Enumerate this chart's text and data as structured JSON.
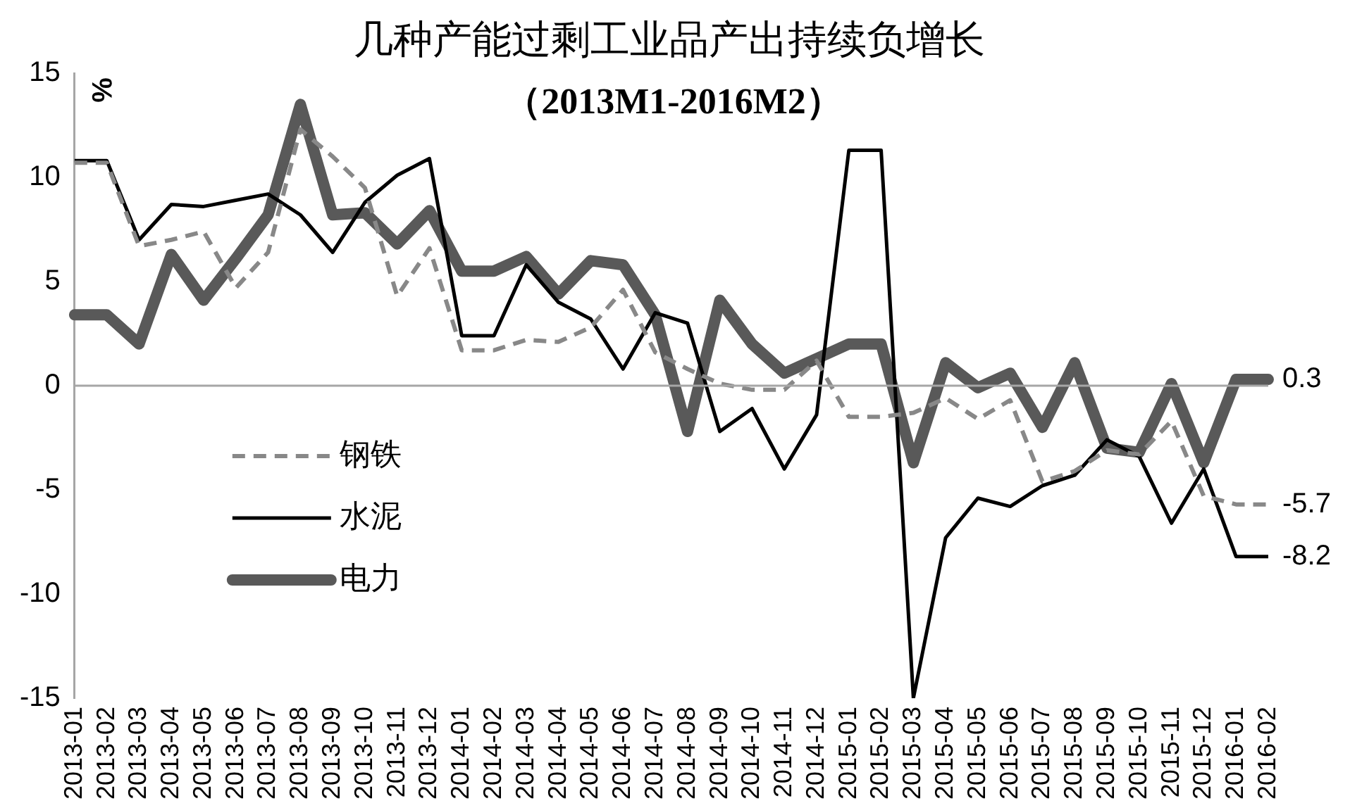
{
  "chart_data": {
    "type": "line",
    "title": "几种产能过剩工业品产出持续负增长",
    "subtitle": "（2013M1-2016M2）",
    "ylabel": "%",
    "categories": [
      "2013-01",
      "2013-02",
      "2013-03",
      "2013-04",
      "2013-05",
      "2013-06",
      "2013-07",
      "2013-08",
      "2013-09",
      "2013-10",
      "2013-11",
      "2013-12",
      "2014-01",
      "2014-02",
      "2014-03",
      "2014-04",
      "2014-05",
      "2014-06",
      "2014-07",
      "2014-08",
      "2014-09",
      "2014-10",
      "2014-11",
      "2014-12",
      "2015-01",
      "2015-02",
      "2015-03",
      "2015-04",
      "2015-05",
      "2015-06",
      "2015-07",
      "2015-08",
      "2015-09",
      "2015-10",
      "2015-11",
      "2015-12",
      "2016-01",
      "2016-02"
    ],
    "series": [
      {
        "name": "钢铁",
        "color": "#888888",
        "line_style": "dashed",
        "values": [
          10.7,
          10.7,
          6.7,
          7.0,
          7.4,
          4.7,
          6.4,
          12.3,
          11.0,
          9.5,
          4.3,
          6.6,
          1.7,
          1.7,
          2.2,
          2.1,
          2.8,
          4.6,
          1.6,
          0.8,
          0.1,
          -0.2,
          -0.2,
          1.2,
          -1.5,
          -1.5,
          -1.3,
          -0.6,
          -1.6,
          -0.7,
          -4.6,
          -4.1,
          -3.1,
          -3.3,
          -1.7,
          -5.3,
          -5.7,
          -5.7
        ]
      },
      {
        "name": "水泥",
        "color": "#000000",
        "line_style": "solid",
        "values": [
          10.8,
          10.8,
          7.0,
          8.7,
          8.6,
          8.9,
          9.2,
          8.2,
          6.4,
          8.8,
          10.1,
          10.9,
          2.4,
          2.4,
          5.8,
          4.0,
          3.2,
          0.8,
          3.5,
          3.0,
          -2.2,
          -1.1,
          -4.0,
          -1.4,
          11.3,
          11.3,
          -15,
          -7.3,
          -5.4,
          -5.8,
          -4.8,
          -4.3,
          -2.6,
          -3.4,
          -6.6,
          -4.0,
          -8.2,
          -8.2
        ]
      },
      {
        "name": "电力",
        "color": "#595959",
        "line_style": "solid",
        "values": [
          3.4,
          3.4,
          2.0,
          6.3,
          4.1,
          6.1,
          8.2,
          13.5,
          8.2,
          8.3,
          6.8,
          8.4,
          5.5,
          5.5,
          6.2,
          4.4,
          6.0,
          5.8,
          3.4,
          -2.2,
          4.1,
          2.0,
          0.6,
          1.3,
          2.0,
          2.0,
          -3.7,
          1.1,
          -0.1,
          0.6,
          -2.0,
          1.1,
          -3.0,
          -3.2,
          0.1,
          -3.7,
          0.3,
          0.3
        ]
      }
    ],
    "ref_lines": [
      {
        "axis": "y",
        "value": 0,
        "color": "#a6a6a6"
      }
    ],
    "ylim": [
      -15,
      15
    ],
    "yticks": [
      -15,
      -10,
      -5,
      0,
      5,
      10,
      15
    ],
    "grid": false,
    "legend": "bottom left",
    "annotations": [
      {
        "text": "0.3",
        "x": "2016-02",
        "y": 0.3
      },
      {
        "text": "-5.7",
        "x": "2016-02",
        "y": -5.7
      },
      {
        "text": "-8.2",
        "x": "2016-02",
        "y": -8.2
      }
    ]
  }
}
